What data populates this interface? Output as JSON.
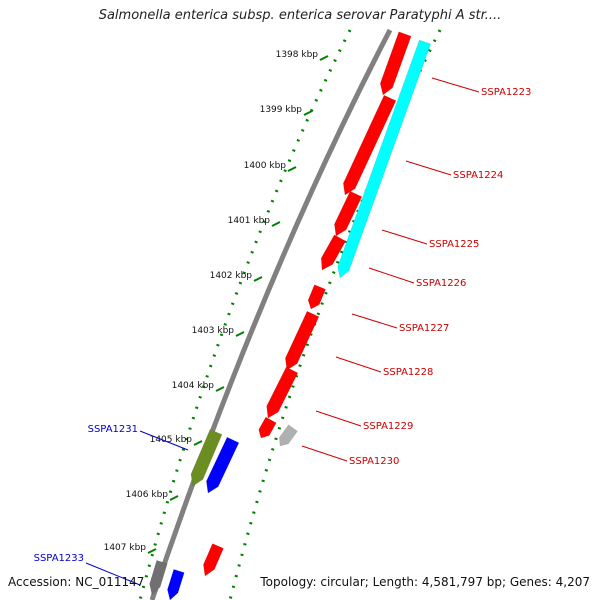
{
  "title": "Salmonella enterica subsp. enterica serovar Paratyphi A str....",
  "accession": "Accession: NC_011147",
  "summary": "Topology: circular; Length: 4,581,797 bp; Genes: 4,207",
  "ticks": [
    {
      "label": "1398 kbp",
      "kbp": 1398
    },
    {
      "label": "1399 kbp",
      "kbp": 1399
    },
    {
      "label": "1400 kbp",
      "kbp": 1400
    },
    {
      "label": "1401 kbp",
      "kbp": 1401
    },
    {
      "label": "1402 kbp",
      "kbp": 1402
    },
    {
      "label": "1403 kbp",
      "kbp": 1403
    },
    {
      "label": "1404 kbp",
      "kbp": 1404
    },
    {
      "label": "1405 kbp",
      "kbp": 1405
    },
    {
      "label": "1406 kbp",
      "kbp": 1406
    },
    {
      "label": "1407 kbp",
      "kbp": 1407
    }
  ],
  "gene_labels": [
    {
      "text": "SSPA1223",
      "color": "#cc0000"
    },
    {
      "text": "SSPA1224",
      "color": "#cc0000"
    },
    {
      "text": "SSPA1225",
      "color": "#cc0000"
    },
    {
      "text": "SSPA1226",
      "color": "#cc0000"
    },
    {
      "text": "SSPA1227",
      "color": "#cc0000"
    },
    {
      "text": "SSPA1228",
      "color": "#cc0000"
    },
    {
      "text": "SSPA1229",
      "color": "#cc0000"
    },
    {
      "text": "SSPA1230",
      "color": "#cc0000"
    },
    {
      "text": "SSPA1231",
      "color": "#0000cc"
    },
    {
      "text": "SSPA1233",
      "color": "#0000cc"
    }
  ],
  "colors": {
    "forward_cds": "#ff0000",
    "reverse_cds": "#0000ff",
    "cyan_feature": "#00ffff",
    "olive_feature": "#6b8e23",
    "grey_feature": "#b0b0b0",
    "backbone": "#808080",
    "dotted_track": "#008000"
  }
}
